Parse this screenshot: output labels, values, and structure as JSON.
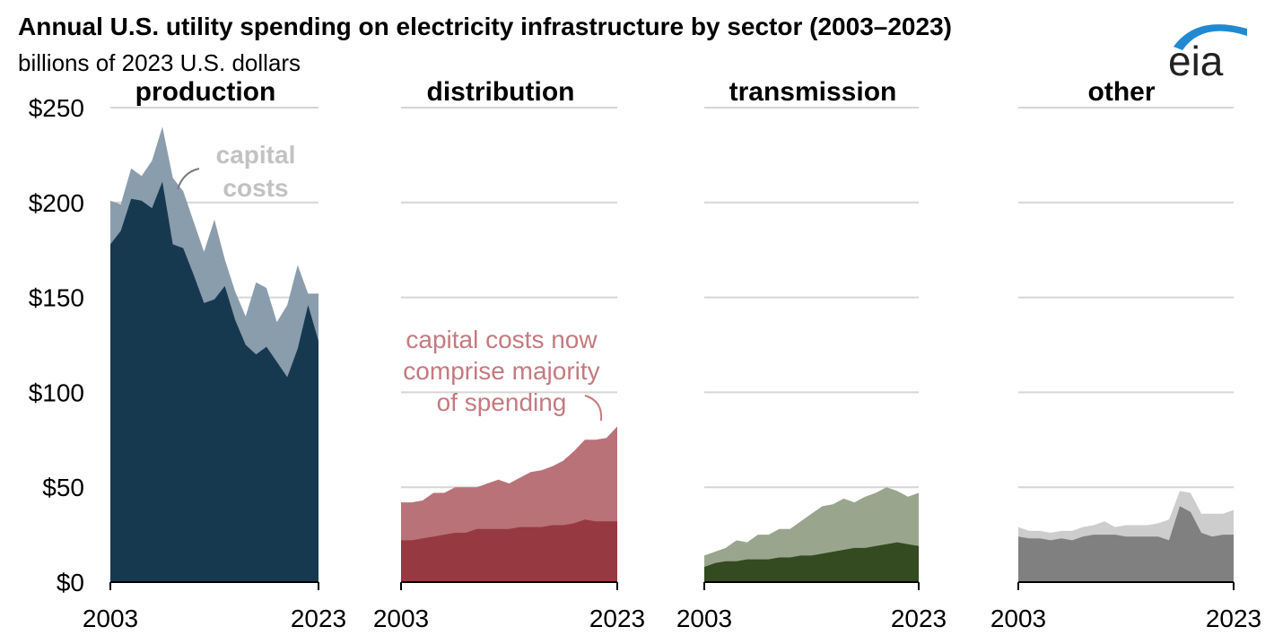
{
  "header": {
    "title": "Annual U.S. utility spending on electricity infrastructure by sector (2003–2023)",
    "subtitle": "billions of 2023 U.S. dollars",
    "logo_text": "eia"
  },
  "colors": {
    "production_capital": "#8a9dad",
    "production_other": "#173950",
    "distribution_capital": "#b87278",
    "distribution_other": "#973941",
    "transmission_capital": "#99a68d",
    "transmission_other": "#344a21",
    "other_capital": "#cdcdcd",
    "other_other": "#808080",
    "gridline": "#d6d6d6",
    "logo_arc": "#1f8ad2"
  },
  "chart_data": {
    "type": "area",
    "layout": "small-multiples, stacked",
    "y_tick_labels": [
      "$0",
      "$50",
      "$100",
      "$150",
      "$200",
      "$250"
    ],
    "y_ticks": [
      0,
      50,
      100,
      150,
      200,
      250
    ],
    "ylim": [
      0,
      250
    ],
    "x_tick_labels": [
      "2003",
      "2023"
    ],
    "x": [
      2003,
      2004,
      2005,
      2006,
      2007,
      2008,
      2009,
      2010,
      2011,
      2012,
      2013,
      2014,
      2015,
      2016,
      2017,
      2018,
      2019,
      2020,
      2021,
      2022,
      2023
    ],
    "grid": true,
    "panels": [
      {
        "title": "production",
        "total": [
          201,
          199,
          218,
          214,
          222,
          240,
          213,
          206,
          190,
          174,
          191,
          170,
          153,
          140,
          158,
          155,
          137,
          146,
          167,
          152,
          152
        ],
        "lower": [
          178,
          185,
          202,
          201,
          197,
          211,
          178,
          176,
          162,
          147,
          149,
          156,
          138,
          125,
          120,
          124,
          116,
          108,
          123,
          146,
          127
        ],
        "annotation": {
          "lines": [
            "capital",
            "costs"
          ],
          "color": "#c2c2c2"
        }
      },
      {
        "title": "distribution",
        "total": [
          42,
          42,
          43,
          47,
          47,
          50,
          50,
          50,
          52,
          54,
          52,
          55,
          58,
          59,
          61,
          64,
          69,
          75,
          75,
          76,
          82
        ],
        "lower": [
          22,
          22,
          23,
          24,
          25,
          26,
          26,
          28,
          28,
          28,
          28,
          29,
          29,
          29,
          30,
          30,
          31,
          33,
          32,
          32,
          32
        ],
        "annotation": {
          "lines": [
            "capital costs now",
            "comprise majority",
            "of spending"
          ],
          "color": "#c47a80"
        }
      },
      {
        "title": "transmission",
        "total": [
          14,
          16,
          18,
          22,
          21,
          25,
          25,
          28,
          28,
          32,
          36,
          40,
          41,
          44,
          42,
          45,
          47,
          50,
          48,
          45,
          47
        ],
        "lower": [
          8,
          10,
          11,
          11,
          12,
          12,
          12,
          13,
          13,
          14,
          14,
          15,
          16,
          17,
          18,
          18,
          19,
          20,
          21,
          20,
          19
        ],
        "annotation": null
      },
      {
        "title": "other",
        "total": [
          29,
          27,
          27,
          26,
          27,
          27,
          29,
          30,
          32,
          29,
          30,
          30,
          30,
          31,
          33,
          48,
          47,
          36,
          36,
          36,
          38
        ],
        "lower": [
          24,
          23,
          23,
          22,
          23,
          22,
          24,
          25,
          25,
          25,
          24,
          24,
          24,
          24,
          22,
          40,
          37,
          26,
          24,
          25,
          25
        ],
        "annotation": null
      }
    ]
  }
}
